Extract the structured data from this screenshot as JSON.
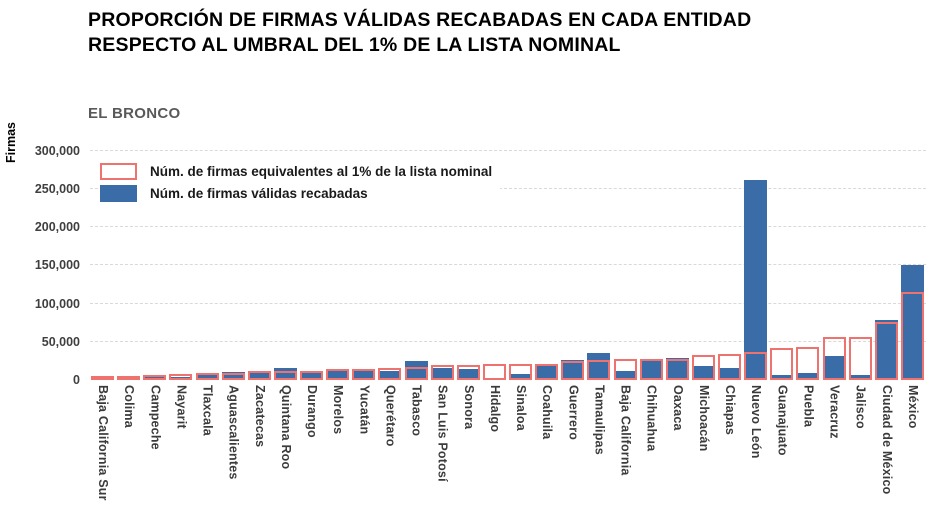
{
  "header": {
    "title_line1": "PROPORCIÓN DE FIRMAS VÁLIDAS RECABADAS EN CADA ENTIDAD",
    "title_line2": "RESPECTO AL UMBRAL DEL 1% DE LA LISTA NOMINAL",
    "subtitle": "EL BRONCO"
  },
  "colors": {
    "validas_blue": "#3A6DA8",
    "threshold_red": "#EE736F",
    "subtitle_gray": "#595959",
    "axis_text": "#3F3F3F",
    "gridline": "#D9D9D9"
  },
  "chart_data": {
    "type": "bar",
    "title": "PROPORCIÓN DE FIRMAS VÁLIDAS RECABADAS EN CADA ENTIDAD RESPECTO AL UMBRAL DEL 1% DE LA LISTA NOMINAL",
    "subtitle": "EL BRONCO",
    "xlabel": "",
    "ylabel": "Firmas",
    "ylim": [
      0,
      300000
    ],
    "yticks": [
      0,
      50000,
      100000,
      150000,
      200000,
      250000,
      300000
    ],
    "ytick_labels": [
      "0",
      "50,000",
      "100,000",
      "150,000",
      "200,000",
      "250,000",
      "300,000"
    ],
    "grid": "horizontal dashed",
    "legend_position": "inside top-left",
    "categories": [
      "Baja California Sur",
      "Colima",
      "Campeche",
      "Nayarit",
      "Tlaxcala",
      "Aguascalientes",
      "Zacatecas",
      "Quintana Roo",
      "Durango",
      "Morelos",
      "Yucatán",
      "Querétaro",
      "Tabasco",
      "San Luis Potosí",
      "Sonora",
      "Hidalgo",
      "Sinaloa",
      "Coahuila",
      "Guerrero",
      "Tamaulipas",
      "Baja California",
      "Chihuahua",
      "Oaxaca",
      "Michoacán",
      "Chiapas",
      "Nuevo León",
      "Guanajuato",
      "Puebla",
      "Veracruz",
      "Jalisco",
      "Ciudad de México",
      "México"
    ],
    "series": [
      {
        "name": "Núm. de firmas equivalentes al 1% de la lista nominal",
        "style": "outlined",
        "color": "#EE736F",
        "values": [
          5000,
          5100,
          6300,
          8000,
          8900,
          9200,
          11200,
          11500,
          12400,
          14100,
          15100,
          15300,
          16800,
          19300,
          20300,
          20800,
          20900,
          21000,
          24500,
          25700,
          26900,
          27000,
          27900,
          33000,
          33500,
          36700,
          42000,
          43800,
          55900,
          56500,
          76500,
          115000
        ]
      },
      {
        "name": "Núm. de firmas válidas recabadas",
        "style": "filled",
        "color": "#3A6DA8",
        "values": [
          5500,
          3500,
          6500,
          4500,
          7000,
          11000,
          11500,
          16000,
          11000,
          13000,
          13500,
          12500,
          25000,
          15500,
          15000,
          2000,
          8500,
          21500,
          26000,
          35500,
          12000,
          27000,
          29500,
          18500,
          16000,
          262000,
          6500,
          9000,
          31000,
          6000,
          78500,
          151000
        ]
      }
    ]
  }
}
